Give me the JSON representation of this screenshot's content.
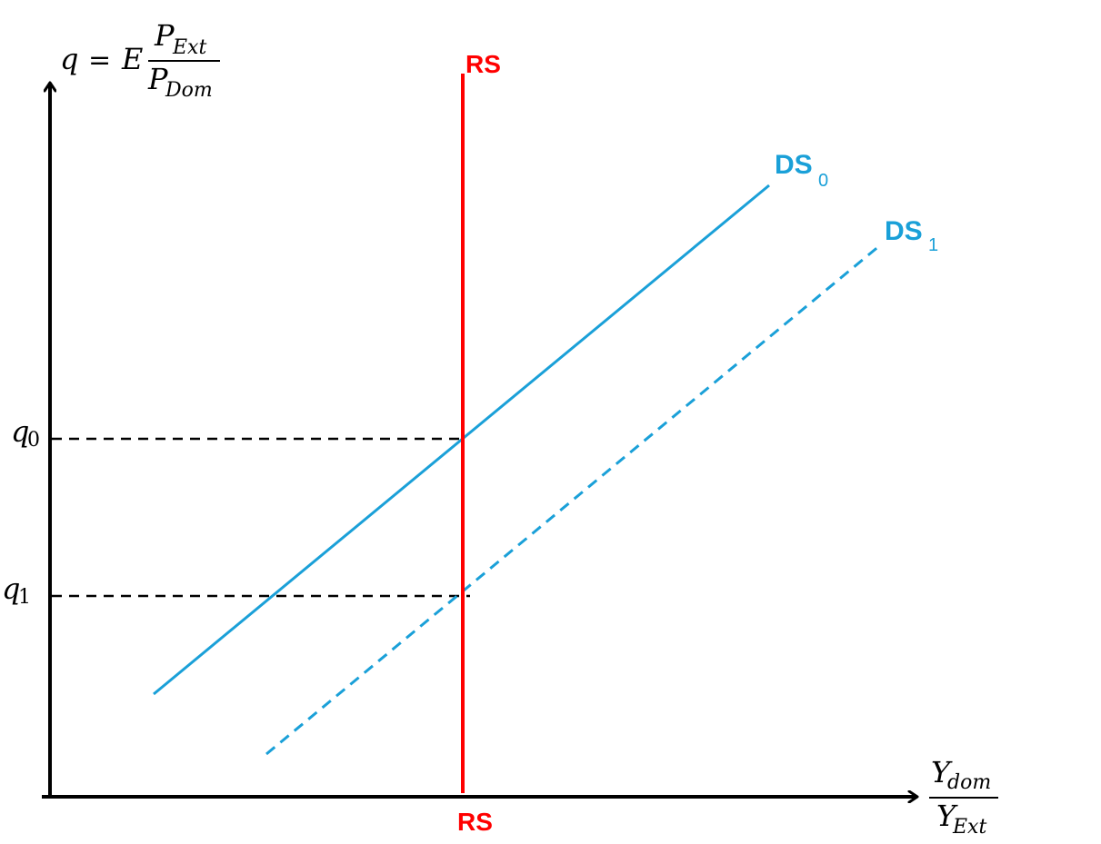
{
  "colors": {
    "axis": "#000000",
    "rs": "#ff0000",
    "ds": "#1aa0d8",
    "guide": "#000000"
  },
  "y_axis_label": {
    "lhs": "q",
    "equals": "=",
    "factor": "E",
    "numerator_base": "P",
    "numerator_sub": "Ext",
    "denominator_base": "P",
    "denominator_sub": "Dom"
  },
  "x_axis_label": {
    "numerator_base": "Y",
    "numerator_sub": "dom",
    "denominator_base": "Y",
    "denominator_sub": "Ext"
  },
  "ticks": {
    "q0": {
      "base": "q",
      "sub": "0"
    },
    "q1": {
      "base": "q",
      "sub": "1"
    }
  },
  "curves": {
    "rs_top_label": "RS",
    "rs_bottom_label": "RS",
    "ds0_base": "DS",
    "ds0_sub": "0",
    "ds1_base": "DS",
    "ds1_sub": "1"
  }
}
